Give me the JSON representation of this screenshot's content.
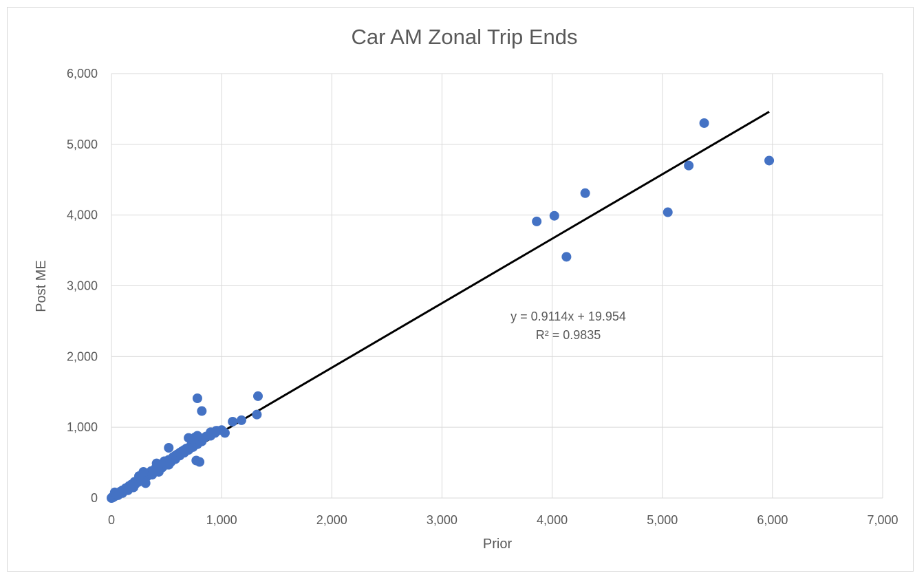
{
  "chart_data": {
    "type": "scatter",
    "title": "Car AM Zonal Trip Ends",
    "xlabel": "Prior",
    "ylabel": "Post ME",
    "xlim": [
      0,
      7000
    ],
    "ylim": [
      0,
      6000
    ],
    "xticks": [
      "0",
      "1,000",
      "2,000",
      "3,000",
      "4,000",
      "5,000",
      "6,000",
      "7,000"
    ],
    "yticks": [
      "0",
      "1,000",
      "2,000",
      "3,000",
      "4,000",
      "5,000",
      "6,000"
    ],
    "grid": true,
    "point_color": "#4472c4",
    "trendline": {
      "type": "linear",
      "slope": 0.9114,
      "intercept": 19.954,
      "x_range": [
        0,
        5970
      ],
      "color": "#000000",
      "equation_label": "y = 0.9114x + 19.954",
      "r2_label": "R² = 0.9835"
    },
    "points": [
      [
        0,
        0
      ],
      [
        5,
        10
      ],
      [
        10,
        5
      ],
      [
        15,
        20
      ],
      [
        20,
        15
      ],
      [
        30,
        25
      ],
      [
        40,
        45
      ],
      [
        50,
        40
      ],
      [
        60,
        70
      ],
      [
        70,
        60
      ],
      [
        80,
        90
      ],
      [
        90,
        85
      ],
      [
        100,
        110
      ],
      [
        110,
        100
      ],
      [
        120,
        120
      ],
      [
        130,
        140
      ],
      [
        150,
        145
      ],
      [
        160,
        170
      ],
      [
        170,
        150
      ],
      [
        180,
        190
      ],
      [
        190,
        170
      ],
      [
        200,
        210
      ],
      [
        210,
        230
      ],
      [
        220,
        200
      ],
      [
        240,
        250
      ],
      [
        250,
        230
      ],
      [
        260,
        290
      ],
      [
        270,
        260
      ],
      [
        280,
        300
      ],
      [
        300,
        280
      ],
      [
        310,
        320
      ],
      [
        320,
        300
      ],
      [
        330,
        350
      ],
      [
        350,
        330
      ],
      [
        360,
        380
      ],
      [
        380,
        360
      ],
      [
        400,
        420
      ],
      [
        420,
        400
      ],
      [
        440,
        460
      ],
      [
        460,
        430
      ],
      [
        480,
        500
      ],
      [
        500,
        470
      ],
      [
        520,
        540
      ],
      [
        540,
        510
      ],
      [
        560,
        580
      ],
      [
        580,
        550
      ],
      [
        600,
        620
      ],
      [
        620,
        600
      ],
      [
        640,
        660
      ],
      [
        660,
        640
      ],
      [
        680,
        700
      ],
      [
        700,
        680
      ],
      [
        720,
        740
      ],
      [
        740,
        720
      ],
      [
        760,
        780
      ],
      [
        780,
        760
      ],
      [
        800,
        820
      ],
      [
        820,
        800
      ],
      [
        840,
        850
      ],
      [
        860,
        870
      ],
      [
        900,
        880
      ],
      [
        940,
        920
      ],
      [
        960,
        950
      ],
      [
        1000,
        960
      ],
      [
        30,
        80
      ],
      [
        60,
        40
      ],
      [
        100,
        70
      ],
      [
        150,
        110
      ],
      [
        200,
        150
      ],
      [
        250,
        310
      ],
      [
        290,
        370
      ],
      [
        310,
        210
      ],
      [
        370,
        330
      ],
      [
        410,
        490
      ],
      [
        430,
        370
      ],
      [
        480,
        520
      ],
      [
        520,
        470
      ],
      [
        580,
        600
      ],
      [
        620,
        640
      ],
      [
        660,
        680
      ],
      [
        700,
        850
      ],
      [
        740,
        830
      ],
      [
        760,
        860
      ],
      [
        780,
        880
      ],
      [
        520,
        710
      ],
      [
        770,
        530
      ],
      [
        800,
        510
      ],
      [
        780,
        1410
      ],
      [
        820,
        1230
      ],
      [
        900,
        930
      ],
      [
        950,
        950
      ],
      [
        1030,
        920
      ],
      [
        1100,
        1080
      ],
      [
        1180,
        1100
      ],
      [
        1320,
        1180
      ],
      [
        1330,
        1440
      ],
      [
        3860,
        3910
      ],
      [
        4020,
        3990
      ],
      [
        4130,
        3410
      ],
      [
        4300,
        4310
      ],
      [
        5050,
        4040
      ],
      [
        5240,
        4700
      ],
      [
        5380,
        5300
      ],
      [
        5970,
        4770
      ]
    ]
  }
}
